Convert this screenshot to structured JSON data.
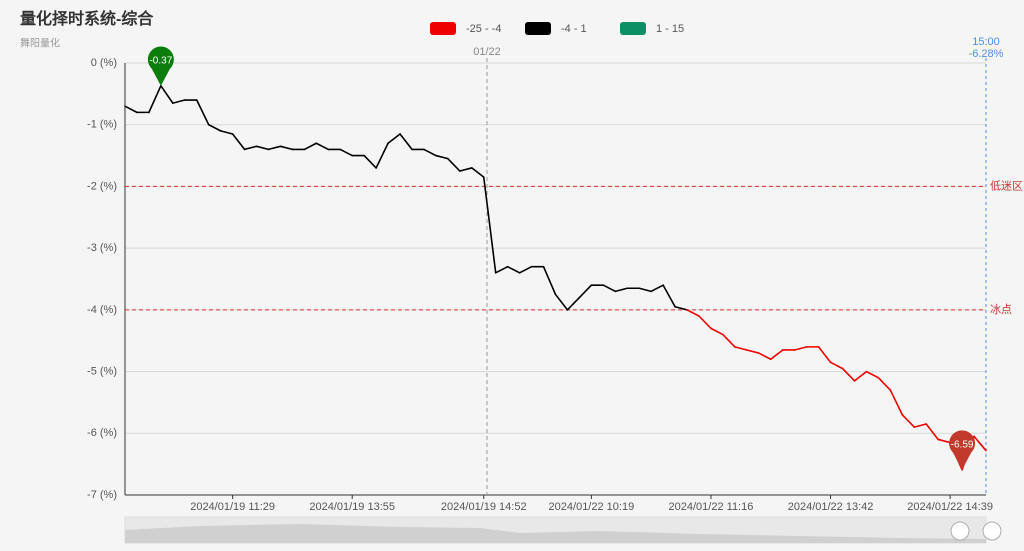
{
  "chart_data": {
    "type": "line",
    "title": "量化择时系统-综合",
    "subtitle": "舞阳量化",
    "categories": [
      null,
      null,
      null,
      null,
      null,
      null,
      null,
      null,
      null,
      "2024/01/19 11:29",
      null,
      null,
      null,
      null,
      null,
      null,
      null,
      null,
      null,
      "2024/01/19 13:55",
      null,
      null,
      null,
      null,
      null,
      null,
      null,
      null,
      null,
      null,
      "2024/01/19 14:52",
      null,
      null,
      null,
      null,
      null,
      null,
      null,
      null,
      "2024/01/22 10:19",
      null,
      null,
      null,
      null,
      null,
      null,
      null,
      null,
      null,
      "2024/01/22 11:16",
      null,
      null,
      null,
      null,
      null,
      null,
      null,
      null,
      null,
      "2024/01/22 13:42",
      null,
      null,
      null,
      null,
      null,
      null,
      null,
      null,
      null,
      "2024/01/22 14:39",
      null,
      null,
      null
    ],
    "series": [
      {
        "name": "综合",
        "values": [
          -0.7,
          -0.8,
          -0.8,
          -0.37,
          -0.65,
          -0.6,
          -0.6,
          -1.0,
          -1.1,
          -1.15,
          -1.4,
          -1.35,
          -1.4,
          -1.35,
          -1.4,
          -1.4,
          -1.3,
          -1.4,
          -1.4,
          -1.5,
          -1.5,
          -1.7,
          -1.3,
          -1.15,
          -1.4,
          -1.4,
          -1.5,
          -1.55,
          -1.75,
          -1.7,
          -1.85,
          -3.4,
          -3.3,
          -3.4,
          -3.3,
          -3.3,
          -3.75,
          -4.0,
          -3.8,
          -3.6,
          -3.6,
          -3.7,
          -3.65,
          -3.65,
          -3.7,
          -3.6,
          -3.95,
          -4.0,
          -4.1,
          -4.3,
          -4.4,
          -4.6,
          -4.65,
          -4.7,
          -4.8,
          -4.65,
          -4.65,
          -4.6,
          -4.6,
          -4.85,
          -4.95,
          -5.15,
          -5.0,
          -5.1,
          -5.3,
          -5.7,
          -5.9,
          -5.85,
          -6.1,
          -6.15,
          -6.59,
          -6.05,
          -6.28
        ]
      }
    ],
    "pieces": [
      {
        "label": "-25 - -4",
        "min": -25,
        "max": -4,
        "color": "#ee0000"
      },
      {
        "label": "-4 - 1",
        "min": -4,
        "max": 1,
        "color": "#000000"
      },
      {
        "label": "1 - 15",
        "min": 1,
        "max": 15,
        "color": "#0b8f64"
      }
    ],
    "ylim": [
      -7,
      0
    ],
    "yticks": [
      {
        "value": 0,
        "label": "0 (%)"
      },
      {
        "value": -1,
        "label": "-1 (%)"
      },
      {
        "value": -2,
        "label": "-2 (%)"
      },
      {
        "value": -3,
        "label": "-3 (%)"
      },
      {
        "value": -4,
        "label": "-4 (%)"
      },
      {
        "value": -5,
        "label": "-5 (%)"
      },
      {
        "value": -6,
        "label": "-6 (%)"
      },
      {
        "value": -7,
        "label": "-7 (%)"
      }
    ],
    "grid": true,
    "mark_lines": [
      {
        "value": -2,
        "label": "低迷区"
      },
      {
        "value": -4,
        "label": "冰点"
      }
    ],
    "divider_label": "01/22",
    "end_time": "15:00",
    "end_value_label": "-6.28%"
  }
}
